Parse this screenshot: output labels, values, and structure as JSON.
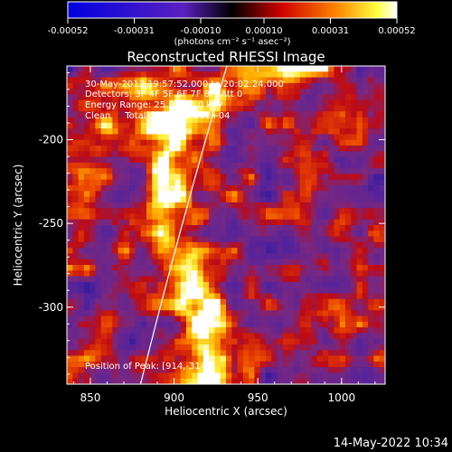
{
  "colorbar": {
    "tick_labels": [
      "-0.00052",
      "-0.00031",
      "-0.00010",
      "0.00010",
      "0.00031",
      "0.00052"
    ],
    "unit_label": "(photons cm⁻² s⁻¹ asec⁻²)",
    "range": [
      -0.00052,
      0.00052
    ]
  },
  "chart_data": {
    "type": "heatmap",
    "title": "Reconstructed RHESSI Image",
    "xlabel": "Heliocentric X (arcsec)",
    "ylabel": "Heliocentric Y (arcsec)",
    "xlim": [
      836,
      1026
    ],
    "ylim": [
      -346,
      -156
    ],
    "x_ticks": [
      850,
      900,
      950,
      1000
    ],
    "y_ticks": [
      -200,
      -250,
      -300
    ],
    "annotations": [
      "30-May-2013 19:57:52.000 to 20:02:24.000",
      "Detectors: 3F 4F 5F 6F 7F 8F, Att 0",
      "Energy Range: 25.0 - 50.0 keV",
      "Clean     Total counts: 1.23E+04"
    ],
    "position_label": "Position of Peak: [914,-314]",
    "limb_color": "#ffffff",
    "colormap": "blue-purple-red-yellow-white"
  },
  "footer": {
    "timestamp": "14-May-2022 10:34"
  }
}
